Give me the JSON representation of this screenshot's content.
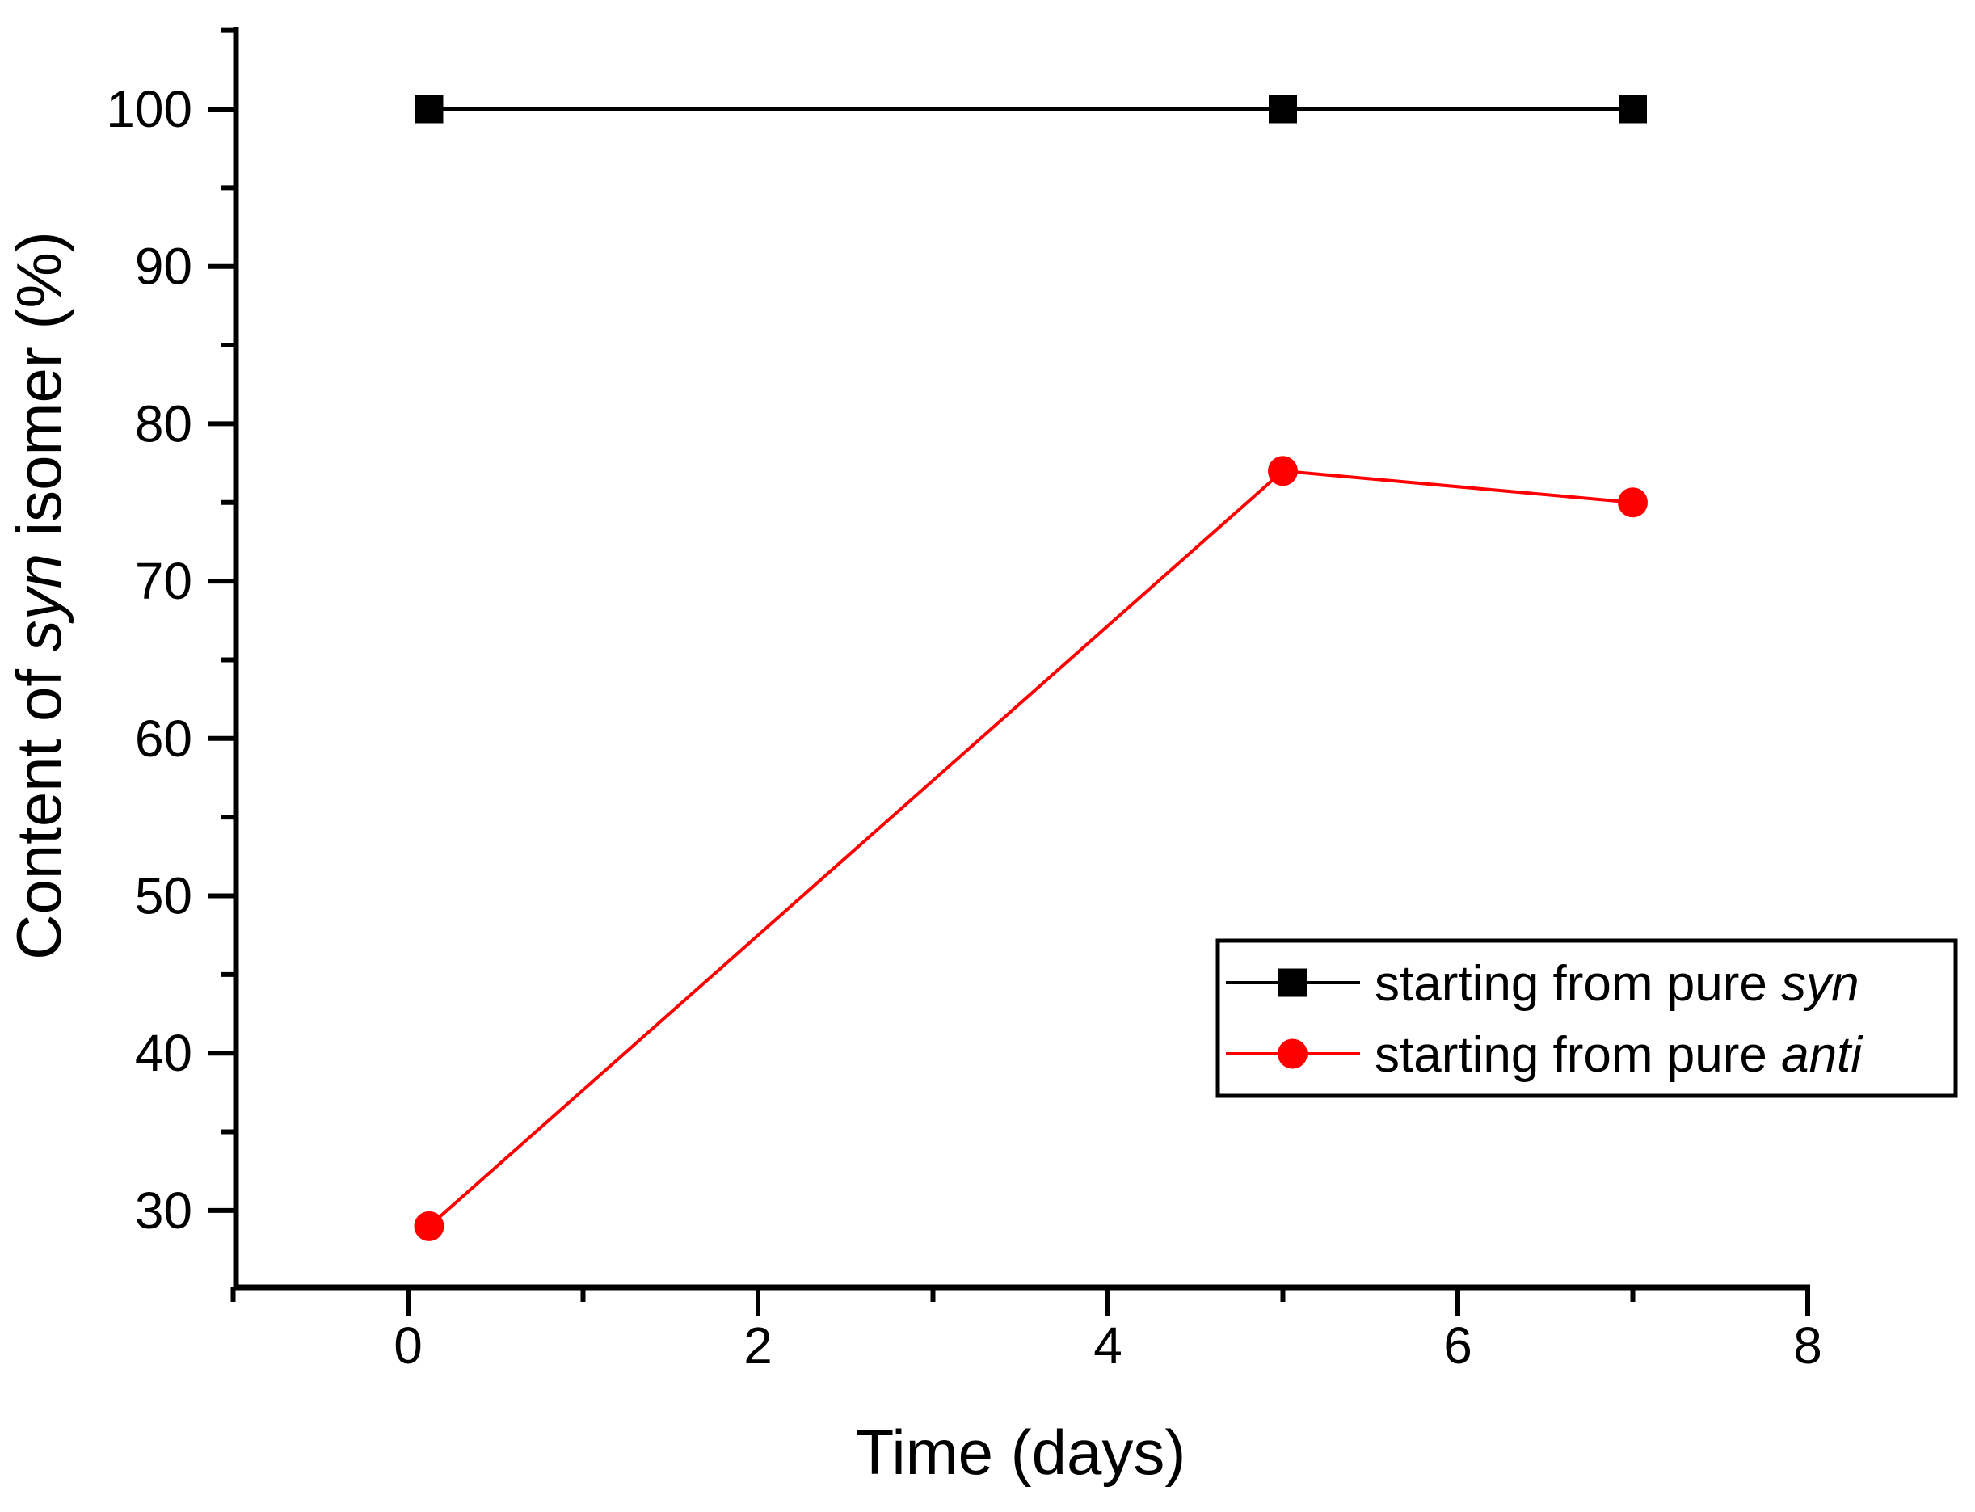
{
  "figure": {
    "background": "#ffffff",
    "axis_color": "#000000"
  },
  "chart_data": {
    "type": "line",
    "title": "",
    "xlabel": "Time (days)",
    "ylabel_parts": {
      "prefix": "Content of ",
      "italic": "syn",
      "suffix": " isomer (%)"
    },
    "xlim": [
      -1,
      8
    ],
    "ylim": [
      25,
      105
    ],
    "x_major_ticks": [
      0,
      2,
      4,
      6,
      8
    ],
    "x_minor_ticks": [
      -1,
      1,
      3,
      5,
      7
    ],
    "y_major_ticks": [
      30,
      40,
      50,
      60,
      70,
      80,
      90,
      100
    ],
    "y_minor_ticks": [
      35,
      45,
      55,
      65,
      75,
      85,
      95,
      105
    ],
    "grid": false,
    "legend_position": "inside-lower-right",
    "series": [
      {
        "name_parts": {
          "prefix": "starting from pure ",
          "italic": "syn"
        },
        "color": "#000000",
        "marker": "square",
        "x": [
          0.12,
          5,
          7
        ],
        "y": [
          100,
          100,
          100
        ]
      },
      {
        "name_parts": {
          "prefix": "starting from pure ",
          "italic": "anti"
        },
        "color": "#ff0000",
        "marker": "circle",
        "x": [
          0.12,
          5,
          7
        ],
        "y": [
          29,
          77,
          75
        ]
      }
    ]
  }
}
